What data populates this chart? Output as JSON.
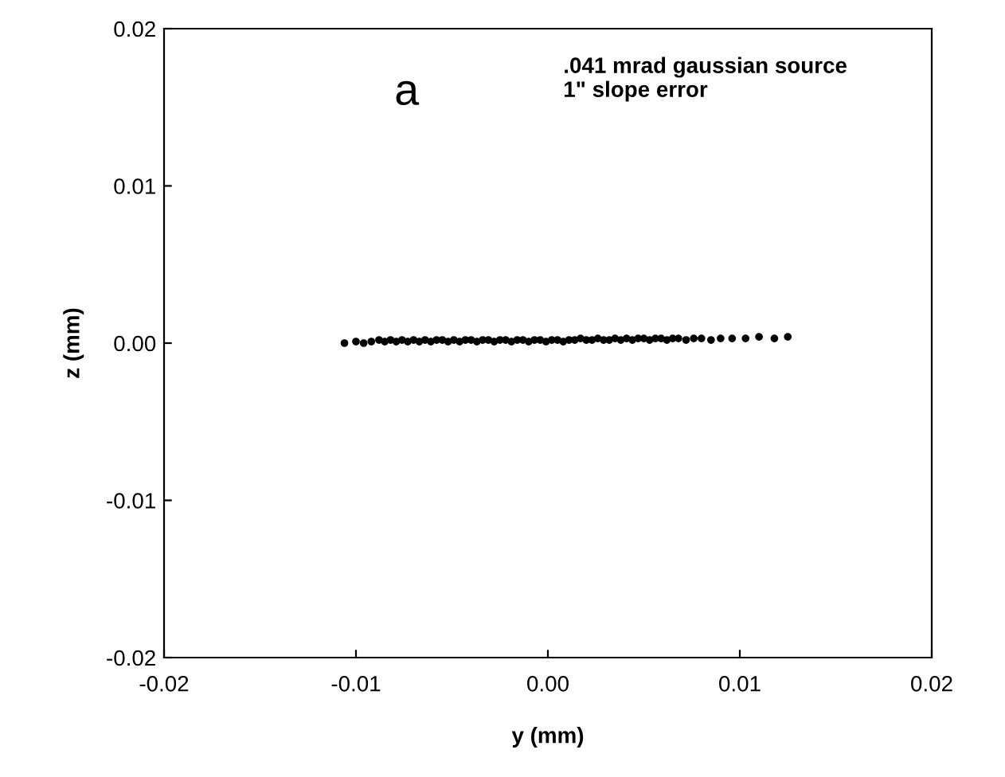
{
  "chart_data": {
    "type": "scatter",
    "xlabel": "y (mm)",
    "ylabel": "z (mm)",
    "annotations": [
      "a",
      ".041 mrad gaussian source\n1\" slope error"
    ],
    "xlim": [
      -0.02,
      0.02
    ],
    "ylim": [
      -0.02,
      0.02
    ],
    "xticks": [
      {
        "value": -0.02,
        "label": "-0.02"
      },
      {
        "value": -0.01,
        "label": "-0.01"
      },
      {
        "value": 0,
        "label": "0.00"
      },
      {
        "value": 0.01,
        "label": "0.01"
      },
      {
        "value": 0.02,
        "label": "0.02"
      }
    ],
    "yticks": [
      {
        "value": -0.02,
        "label": "-0.02"
      },
      {
        "value": -0.01,
        "label": "-0.01"
      },
      {
        "value": 0,
        "label": "0.00"
      },
      {
        "value": 0.01,
        "label": "0.01"
      },
      {
        "value": 0.02,
        "label": "0.02"
      }
    ],
    "grid": false,
    "series": [
      {
        "color": "#000000",
        "x": [
          -0.0106,
          -0.01,
          -0.0096,
          -0.0092,
          -0.0088,
          -0.0085,
          -0.0082,
          -0.0079,
          -0.0076,
          -0.0073,
          -0.007,
          -0.0067,
          -0.0064,
          -0.0061,
          -0.0058,
          -0.0055,
          -0.0052,
          -0.0049,
          -0.0046,
          -0.0043,
          -0.004,
          -0.0037,
          -0.0034,
          -0.0031,
          -0.0028,
          -0.0025,
          -0.0022,
          -0.0019,
          -0.0016,
          -0.0013,
          -0.001,
          -0.0007,
          -0.0004,
          -0.0001,
          0.0002,
          0.0005,
          0.0008,
          0.0011,
          0.0014,
          0.0017,
          0.002,
          0.0023,
          0.0026,
          0.0029,
          0.0032,
          0.0035,
          0.0038,
          0.0041,
          0.0044,
          0.0047,
          0.005,
          0.0053,
          0.0056,
          0.0059,
          0.0062,
          0.0065,
          0.0068,
          0.0072,
          0.0076,
          0.008,
          0.0085,
          0.009,
          0.0096,
          0.0103,
          0.011,
          0.0118,
          0.0125
        ],
        "values": [
          0.0,
          0.0001,
          0.0,
          0.0001,
          0.0002,
          0.0001,
          0.0002,
          0.0001,
          0.0002,
          0.0001,
          0.0002,
          0.0001,
          0.0002,
          0.0001,
          0.0002,
          0.0002,
          0.0001,
          0.0002,
          0.0001,
          0.0002,
          0.0002,
          0.0001,
          0.0002,
          0.0002,
          0.0001,
          0.0002,
          0.0002,
          0.0001,
          0.0002,
          0.0002,
          0.0001,
          0.0002,
          0.0002,
          0.0001,
          0.0002,
          0.0002,
          0.0001,
          0.0002,
          0.0002,
          0.0003,
          0.0002,
          0.0002,
          0.0003,
          0.0002,
          0.0002,
          0.0003,
          0.0002,
          0.0003,
          0.0002,
          0.0003,
          0.0003,
          0.0002,
          0.0003,
          0.0003,
          0.0002,
          0.0003,
          0.0003,
          0.0002,
          0.0003,
          0.0003,
          0.0002,
          0.0003,
          0.0003,
          0.0003,
          0.0004,
          0.0003,
          0.0004
        ]
      }
    ]
  }
}
